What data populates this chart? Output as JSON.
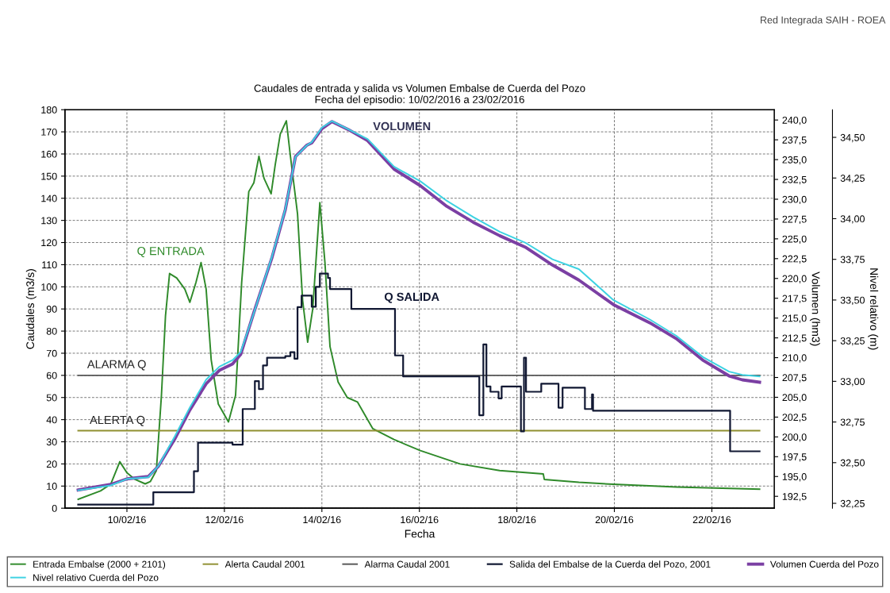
{
  "chart_data": {
    "type": "line",
    "title": "Caudales de entrada y salida vs Volumen Embalse de Cuerda del Pozo",
    "subtitle": "Fecha del episodio: 10/02/2016 a 23/02/2016",
    "xlabel": "Fecha",
    "ylabel": "Caudales (m3/s)",
    "y2label": "Volumen (hm3)",
    "y3label": "Nivel relativo (m)",
    "xlim": [
      "2016-02-08T17:30",
      "2016-02-23T06:45"
    ],
    "xticks": [
      {
        "value": "2016-02-10",
        "label": "10/02/16"
      },
      {
        "value": "2016-02-12",
        "label": "12/02/16"
      },
      {
        "value": "2016-02-14",
        "label": "14/02/16"
      },
      {
        "value": "2016-02-16",
        "label": "16/02/16"
      },
      {
        "value": "2016-02-18",
        "label": "18/02/16"
      },
      {
        "value": "2016-02-20",
        "label": "20/02/16"
      },
      {
        "value": "2016-02-22",
        "label": "22/02/16"
      }
    ],
    "ylim": [
      0,
      180
    ],
    "yticks": [
      0,
      10,
      20,
      30,
      40,
      50,
      60,
      70,
      80,
      90,
      100,
      110,
      120,
      130,
      140,
      150,
      160,
      170,
      180
    ],
    "y2lim": [
      191,
      241.3
    ],
    "y2ticks": [
      {
        "value": 192.5,
        "label": "192,5"
      },
      {
        "value": 195,
        "label": "195,0"
      },
      {
        "value": 197.5,
        "label": "197,5"
      },
      {
        "value": 200,
        "label": "200,0"
      },
      {
        "value": 202.5,
        "label": "202,5"
      },
      {
        "value": 205,
        "label": "205,0"
      },
      {
        "value": 207.5,
        "label": "207,5"
      },
      {
        "value": 210,
        "label": "210,0"
      },
      {
        "value": 212.5,
        "label": "212,5"
      },
      {
        "value": 215,
        "label": "215,0"
      },
      {
        "value": 217.5,
        "label": "217,5"
      },
      {
        "value": 220,
        "label": "220,0"
      },
      {
        "value": 222.5,
        "label": "222,5"
      },
      {
        "value": 225,
        "label": "225,0"
      },
      {
        "value": 227.5,
        "label": "227,5"
      },
      {
        "value": 230,
        "label": "230,0"
      },
      {
        "value": 232.5,
        "label": "232,5"
      },
      {
        "value": 235,
        "label": "235,0"
      },
      {
        "value": 237.5,
        "label": "237,5"
      },
      {
        "value": 240,
        "label": "240,0"
      }
    ],
    "y3lim": [
      32.22,
      34.67
    ],
    "y3ticks": [
      {
        "value": 32.25,
        "label": "32,25"
      },
      {
        "value": 32.5,
        "label": "32,50"
      },
      {
        "value": 32.75,
        "label": "32,75"
      },
      {
        "value": 33,
        "label": "33,00"
      },
      {
        "value": 33.25,
        "label": "33,25"
      },
      {
        "value": 33.5,
        "label": "33,50"
      },
      {
        "value": 33.75,
        "label": "33,75"
      },
      {
        "value": 34,
        "label": "34,00"
      },
      {
        "value": 34.25,
        "label": "34,25"
      },
      {
        "value": 34.5,
        "label": "34,50"
      }
    ],
    "grid": true,
    "legend": "bottom",
    "series": [
      {
        "name": "Entrada Embalse (2000 + 2101)",
        "color": "#2f8a2a",
        "x": [
          "2016-02-09T00:00",
          "2016-02-09T11:00",
          "2016-02-09T16:00",
          "2016-02-09T20:30",
          "2016-02-10T00:00",
          "2016-02-10T04:00",
          "2016-02-10T09:00",
          "2016-02-10T11:30",
          "2016-02-10T14:30",
          "2016-02-10T17:00",
          "2016-02-10T19:00",
          "2016-02-10T21:00",
          "2016-02-11T00:30",
          "2016-02-11T04:30",
          "2016-02-11T07:00",
          "2016-02-11T10:00",
          "2016-02-11T12:30",
          "2016-02-11T15:00",
          "2016-02-11T17:30",
          "2016-02-11T21:00",
          "2016-02-12T02:00",
          "2016-02-12T05:30",
          "2016-02-12T08:30",
          "2016-02-12T12:00",
          "2016-02-12T14:30",
          "2016-02-12T17:00",
          "2016-02-12T19:30",
          "2016-02-12T23:00",
          "2016-02-13T01:00",
          "2016-02-13T03:30",
          "2016-02-13T06:30",
          "2016-02-13T08:30",
          "2016-02-13T12:00",
          "2016-02-13T14:30",
          "2016-02-13T17:00",
          "2016-02-13T19:30",
          "2016-02-13T23:00",
          "2016-02-14T01:30",
          "2016-02-14T04:00",
          "2016-02-14T08:00",
          "2016-02-14T12:30",
          "2016-02-14T17:30",
          "2016-02-15T01:00",
          "2016-02-15T11:30",
          "2016-02-16T00:30",
          "2016-02-16T20:00",
          "2016-02-17T15:30",
          "2016-02-18T13:00",
          "2016-02-18T13:30",
          "2016-02-19T06:30",
          "2016-02-19T23:30",
          "2016-02-21T06:30",
          "2016-02-22T23:30"
        ],
        "values": [
          4,
          7.8,
          10.8,
          21,
          16,
          13,
          11,
          12,
          17,
          51,
          87,
          106,
          104,
          99,
          93,
          102,
          111,
          99,
          67,
          47,
          39,
          51,
          102,
          143,
          147,
          159,
          149,
          142,
          155,
          169,
          175,
          159,
          133,
          94,
          75,
          90,
          138,
          111,
          73,
          57,
          50,
          48,
          36,
          31,
          26,
          20,
          17,
          15.5,
          13,
          11.7,
          10.8,
          9.6,
          8.6
        ]
      },
      {
        "name": "Alerta Caudal 2001",
        "color": "#8f8f30",
        "x": [
          "2016-02-09T00:00",
          "2016-02-22T23:30"
        ],
        "values": [
          35,
          35
        ]
      },
      {
        "name": "Alarma Caudal 2001",
        "color": "#555555",
        "x": [
          "2016-02-09T00:00",
          "2016-02-22T23:30"
        ],
        "values": [
          60,
          60
        ]
      },
      {
        "name": "Salida del Embalse de la Cuerda del Pozo, 2001",
        "color": "#111833",
        "type": "step",
        "x": [
          "2016-02-09T00:00",
          "2016-02-10T13:00",
          "2016-02-11T09:00",
          "2016-02-11T11:00",
          "2016-02-12T04:00",
          "2016-02-12T09:00",
          "2016-02-12T15:00",
          "2016-02-12T17:00",
          "2016-02-12T19:00",
          "2016-02-12T21:00",
          "2016-02-13T06:00",
          "2016-02-13T08:30",
          "2016-02-13T10:30",
          "2016-02-13T12:00",
          "2016-02-13T14:00",
          "2016-02-13T19:00",
          "2016-02-13T21:00",
          "2016-02-13T23:00",
          "2016-02-14T03:00",
          "2016-02-14T04:00",
          "2016-02-14T14:30",
          "2016-02-15T12:00",
          "2016-02-15T16:00",
          "2016-02-17T05:30",
          "2016-02-17T07:30",
          "2016-02-17T09:00",
          "2016-02-17T11:00",
          "2016-02-17T15:00",
          "2016-02-17T16:30",
          "2016-02-18T02:00",
          "2016-02-18T03:30",
          "2016-02-18T04:30",
          "2016-02-18T12:00",
          "2016-02-18T20:30",
          "2016-02-18T22:30",
          "2016-02-19T09:30",
          "2016-02-19T13:00",
          "2016-02-19T13:30",
          "2016-02-22T09:00",
          "2016-02-22T23:30"
        ],
        "values": [
          1.6,
          7.2,
          16.7,
          29.6,
          28.7,
          44.8,
          57.4,
          53.8,
          64.5,
          68,
          68.7,
          70.5,
          67.5,
          90.8,
          96,
          91,
          100,
          106,
          104,
          99,
          90,
          69,
          59.5,
          42,
          74,
          55,
          52.6,
          49.6,
          55,
          34.7,
          68,
          52.6,
          56.2,
          45.4,
          54.4,
          44.8,
          51.4,
          44,
          25.7,
          25.7
        ]
      },
      {
        "name": "Volumen Cuerda del Pozo",
        "color": "#7b3fa3",
        "axis": "y2",
        "x": [
          "2016-02-09T00:00",
          "2016-02-09T16:00",
          "2016-02-10T00:00",
          "2016-02-10T10:30",
          "2016-02-10T15:30",
          "2016-02-10T23:30",
          "2016-02-11T07:00",
          "2016-02-11T15:00",
          "2016-02-11T21:30",
          "2016-02-12T04:00",
          "2016-02-12T08:00",
          "2016-02-12T14:30",
          "2016-02-12T23:30",
          "2016-02-13T06:00",
          "2016-02-13T11:00",
          "2016-02-13T16:30",
          "2016-02-13T19:00",
          "2016-02-14T00:00",
          "2016-02-14T05:00",
          "2016-02-14T13:00",
          "2016-02-14T22:30",
          "2016-02-15T11:30",
          "2016-02-16T00:30",
          "2016-02-16T13:30",
          "2016-02-17T02:30",
          "2016-02-17T15:30",
          "2016-02-18T04:30",
          "2016-02-18T17:30",
          "2016-02-19T06:30",
          "2016-02-19T23:30",
          "2016-02-20T17:30",
          "2016-02-21T06:30",
          "2016-02-21T19:30",
          "2016-02-22T08:30",
          "2016-02-22T15:00",
          "2016-02-22T23:30"
        ],
        "values": [
          193.3,
          194.0,
          194.7,
          195.0,
          196.3,
          199.7,
          203.4,
          206.7,
          208.4,
          209.2,
          210.4,
          215.7,
          222.7,
          228.7,
          235.4,
          236.8,
          237.1,
          238.9,
          239.8,
          238.8,
          237.4,
          233.8,
          231.7,
          229.1,
          227.1,
          225.4,
          223.9,
          221.7,
          219.8,
          216.7,
          214.4,
          212.4,
          209.7,
          207.7,
          207.2,
          206.9
        ]
      },
      {
        "name": "Nivel relativo Cuerda del Pozo",
        "color": "#3cd2e2",
        "axis": "y3",
        "x": [
          "2016-02-09T00:00",
          "2016-02-09T16:00",
          "2016-02-10T00:00",
          "2016-02-10T10:30",
          "2016-02-10T15:30",
          "2016-02-10T23:30",
          "2016-02-11T07:00",
          "2016-02-11T15:00",
          "2016-02-11T21:30",
          "2016-02-12T04:00",
          "2016-02-12T08:00",
          "2016-02-12T14:30",
          "2016-02-12T23:30",
          "2016-02-13T06:00",
          "2016-02-13T11:00",
          "2016-02-13T16:30",
          "2016-02-13T19:00",
          "2016-02-14T00:00",
          "2016-02-14T05:00",
          "2016-02-14T13:00",
          "2016-02-14T22:30",
          "2016-02-15T11:30",
          "2016-02-16T00:30",
          "2016-02-16T13:30",
          "2016-02-17T02:30",
          "2016-02-17T15:30",
          "2016-02-18T04:30",
          "2016-02-18T17:30",
          "2016-02-19T06:30",
          "2016-02-19T23:30",
          "2016-02-20T17:30",
          "2016-02-21T06:30",
          "2016-02-21T19:30",
          "2016-02-22T08:30",
          "2016-02-22T15:00",
          "2016-02-22T23:30"
        ],
        "values": [
          32.33,
          32.36,
          32.4,
          32.41,
          32.48,
          32.66,
          32.84,
          33.01,
          33.09,
          33.13,
          33.18,
          33.42,
          33.77,
          34.06,
          34.38,
          34.45,
          34.47,
          34.56,
          34.6,
          34.55,
          34.49,
          34.32,
          34.23,
          34.11,
          34.01,
          33.92,
          33.85,
          33.75,
          33.69,
          33.5,
          33.38,
          33.28,
          33.15,
          33.06,
          33.04,
          33.03
        ]
      }
    ],
    "annotations": [
      "Q ENTRADA",
      "VOLUMEN",
      "Q SALIDA",
      "ALARMA Q",
      "ALERTA Q",
      "Red Integrada SAIH - ROEA"
    ]
  }
}
